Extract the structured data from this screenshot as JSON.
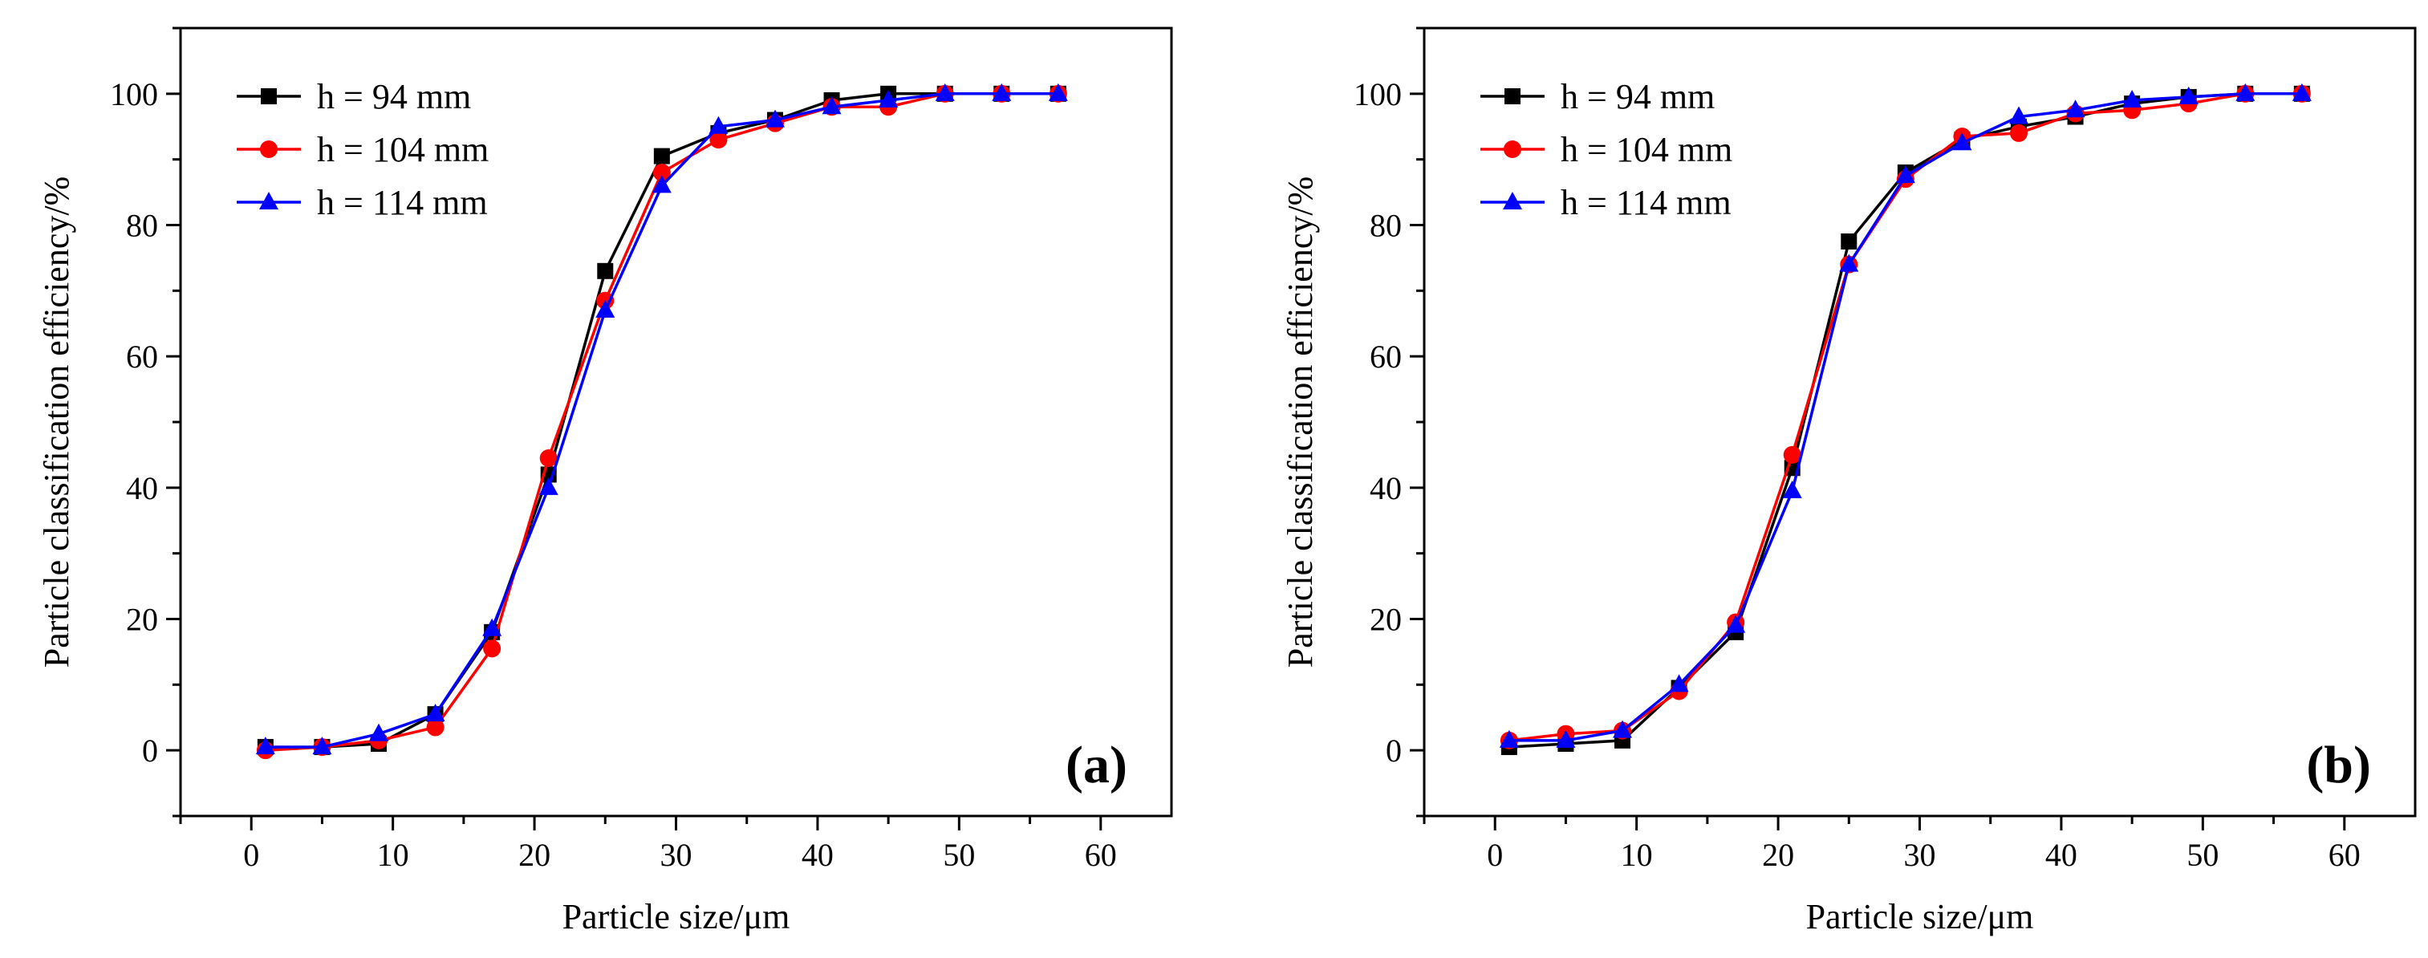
{
  "figure": {
    "background": "#ffffff"
  },
  "chart_data": [
    {
      "type": "line",
      "panel_label": "(a)",
      "xlabel": "Particle size/μm",
      "ylabel": "Particle classification efficiency/%",
      "xlim": [
        -5,
        65
      ],
      "ylim": [
        -10,
        110
      ],
      "xticks": [
        0,
        10,
        20,
        30,
        40,
        50,
        60
      ],
      "yticks": [
        0,
        20,
        40,
        60,
        80,
        100
      ],
      "legend_position": "top-left",
      "x": [
        1,
        5,
        9,
        13,
        17,
        21,
        25,
        29,
        33,
        37,
        41,
        45,
        49,
        53,
        57
      ],
      "series": [
        {
          "name": "h = 94 mm",
          "color": "#000000",
          "marker": "square",
          "values": [
            0.5,
            0.5,
            1,
            5.5,
            18,
            42,
            73,
            90.5,
            94,
            96,
            99,
            100,
            100,
            100,
            100
          ]
        },
        {
          "name": "h = 104 mm",
          "color": "#ff0000",
          "marker": "circle",
          "values": [
            0,
            0.5,
            1.5,
            3.5,
            15.5,
            44.5,
            68.5,
            88,
            93,
            95.5,
            98,
            98,
            100,
            100,
            100
          ]
        },
        {
          "name": "h = 114 mm",
          "color": "#0000ff",
          "marker": "triangle",
          "values": [
            0.5,
            0.5,
            2.5,
            5.5,
            18.5,
            40,
            67,
            86,
            95,
            96,
            98,
            99,
            100,
            100,
            100
          ]
        }
      ]
    },
    {
      "type": "line",
      "panel_label": "(b)",
      "xlabel": "Particle size/μm",
      "ylabel": "Particle classification efficiency/%",
      "xlim": [
        -5,
        65
      ],
      "ylim": [
        -10,
        110
      ],
      "xticks": [
        0,
        10,
        20,
        30,
        40,
        50,
        60
      ],
      "yticks": [
        0,
        20,
        40,
        60,
        80,
        100
      ],
      "legend_position": "top-left",
      "x": [
        1,
        5,
        9,
        13,
        17,
        21,
        25,
        29,
        33,
        37,
        41,
        45,
        49,
        53,
        57
      ],
      "series": [
        {
          "name": "h = 94 mm",
          "color": "#000000",
          "marker": "square",
          "values": [
            0.5,
            1,
            1.5,
            9.5,
            18,
            43,
            77.5,
            88,
            93,
            95,
            96.5,
            98.5,
            99.5,
            100,
            100
          ]
        },
        {
          "name": "h = 104 mm",
          "color": "#ff0000",
          "marker": "circle",
          "values": [
            1.5,
            2.5,
            3,
            9,
            19.5,
            45,
            74,
            87,
            93.5,
            94,
            97,
            97.5,
            98.5,
            100,
            100
          ]
        },
        {
          "name": "h = 114 mm",
          "color": "#0000ff",
          "marker": "triangle",
          "values": [
            1.5,
            1.5,
            3,
            10,
            19,
            39.5,
            74,
            87.5,
            92.5,
            96.5,
            97.5,
            99,
            99.5,
            100,
            100
          ]
        }
      ]
    }
  ]
}
